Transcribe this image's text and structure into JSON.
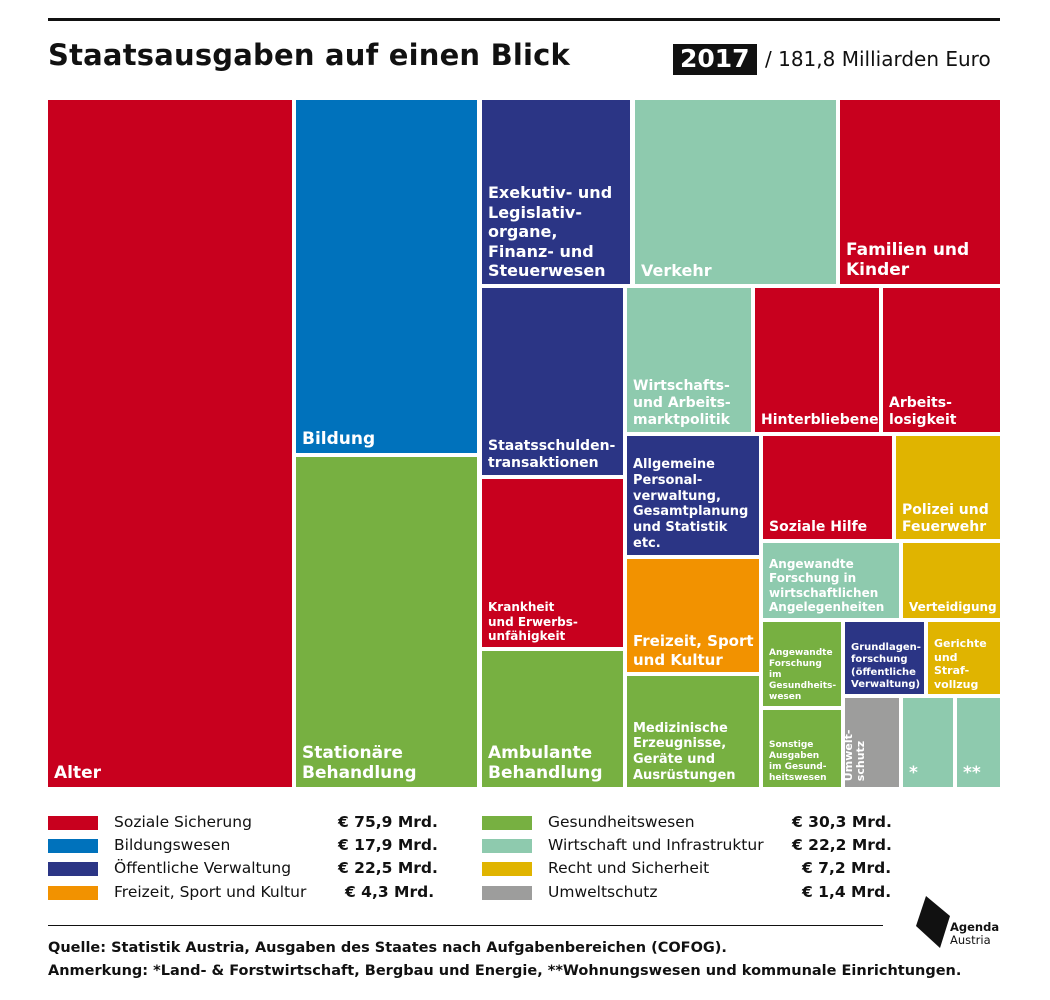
{
  "header": {
    "title": "Staatsausgaben auf einen Blick",
    "year": "2017",
    "total": "/ 181,8 Milliarden Euro"
  },
  "colors": {
    "soziale": "#c8001e",
    "bildung": "#0072bc",
    "verwaltung": "#2b3585",
    "freizeit": "#f29200",
    "gesundheit": "#77b041",
    "wirtschaft": "#8ecaae",
    "recht": "#e0b400",
    "umwelt": "#9d9d9c"
  },
  "chart_data": {
    "type": "treemap",
    "title": "Staatsausgaben auf einen Blick",
    "categories": [
      {
        "name": "Soziale Sicherung",
        "value_text": "€ 75,9 Mrd.",
        "value": 75.9,
        "color_key": "soziale"
      },
      {
        "name": "Bildungswesen",
        "value_text": "€ 17,9 Mrd.",
        "value": 17.9,
        "color_key": "bildung"
      },
      {
        "name": "Öffentliche Verwaltung",
        "value_text": "€ 22,5 Mrd.",
        "value": 22.5,
        "color_key": "verwaltung"
      },
      {
        "name": "Freizeit, Sport und Kultur",
        "value_text": "€ 4,3 Mrd.",
        "value": 4.3,
        "color_key": "freizeit"
      },
      {
        "name": "Gesundheitswesen",
        "value_text": "€ 30,3 Mrd.",
        "value": 30.3,
        "color_key": "gesundheit"
      },
      {
        "name": "Wirtschaft und Infrastruktur",
        "value_text": "€ 22,2 Mrd.",
        "value": 22.2,
        "color_key": "wirtschaft"
      },
      {
        "name": "Recht und Sicherheit",
        "value_text": "€ 7,2 Mrd.",
        "value": 7.2,
        "color_key": "recht"
      },
      {
        "name": "Umweltschutz",
        "value_text": "€ 1,4 Mrd.",
        "value": 1.4,
        "color_key": "umwelt"
      }
    ],
    "tiles": [
      {
        "label": "Alter",
        "category": "soziale"
      },
      {
        "label": "Bildung",
        "category": "bildung"
      },
      {
        "label": "Stationäre\nBehandlung",
        "category": "gesundheit"
      },
      {
        "label": "Exekutiv- und\nLegislativ-\norgane,\nFinanz- und\nSteuerwesen",
        "category": "verwaltung"
      },
      {
        "label": "Staatsschulden-\ntransaktionen",
        "category": "verwaltung"
      },
      {
        "label": "Krankheit\nund Erwerbs-\nunfähigkeit",
        "category": "soziale"
      },
      {
        "label": "Ambulante\nBehandlung",
        "category": "gesundheit"
      },
      {
        "label": "Verkehr",
        "category": "wirtschaft"
      },
      {
        "label": "Familien und\nKinder",
        "category": "soziale"
      },
      {
        "label": "Wirtschafts-\nund Arbeits-\nmarktpolitik",
        "category": "wirtschaft"
      },
      {
        "label": "Hinterbliebene",
        "category": "soziale"
      },
      {
        "label": "Arbeits-\nlosigkeit",
        "category": "soziale"
      },
      {
        "label": "Allgemeine\nPersonal-\nverwaltung,\nGesamtplanung\nund Statistik etc.",
        "category": "verwaltung"
      },
      {
        "label": "Freizeit, Sport\nund Kultur",
        "category": "freizeit"
      },
      {
        "label": "Medizinische\nErzeugnisse,\nGeräte und\nAusrüstungen",
        "category": "gesundheit"
      },
      {
        "label": "Soziale Hilfe",
        "category": "soziale"
      },
      {
        "label": "Polizei und\nFeuerwehr",
        "category": "recht"
      },
      {
        "label": "Angewandte\nForschung in\nwirtschaftlichen\nAngelegenheiten",
        "category": "wirtschaft"
      },
      {
        "label": "Verteidigung",
        "category": "recht"
      },
      {
        "label": "Angewandte\nForschung im\nGesundheits-\nwesen",
        "category": "gesundheit"
      },
      {
        "label": "Grundlagen-\nforschung\n(öffentliche\nVerwaltung)",
        "category": "verwaltung"
      },
      {
        "label": "Gerichte\nund\nStraf-\nvollzug",
        "category": "recht"
      },
      {
        "label": "Sonstige\nAusgaben\nim Gesund-\nheitswesen",
        "category": "gesundheit"
      },
      {
        "label": "Umwelt-\nschutz",
        "category": "umwelt"
      },
      {
        "label": "*",
        "category": "wirtschaft"
      },
      {
        "label": "**",
        "category": "wirtschaft"
      }
    ]
  },
  "footer": {
    "source": "Quelle: Statistik Austria, Ausgaben des Staates nach Aufgabenbereichen (COFOG).",
    "note": "Anmerkung: *Land- & Forstwirtschaft, Bergbau und Energie,  **Wohnungswesen und kommunale Einrichtungen.",
    "logo_name": "Agenda",
    "logo_sub": "Austria"
  }
}
